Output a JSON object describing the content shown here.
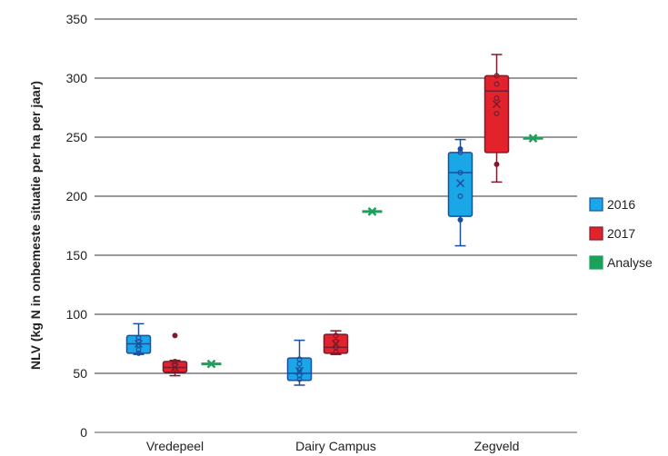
{
  "chart_data": {
    "type": "box",
    "ylabel": "NLV (kg N in onbemeste situatie per ha per jaar)",
    "xlabel": "",
    "ylim": [
      0,
      350
    ],
    "yticks": [
      0,
      50,
      100,
      150,
      200,
      250,
      300,
      350
    ],
    "grid": "horizontal",
    "legend_position": "right",
    "categories": [
      "Vredepeel",
      "Dairy Campus",
      "Zegveld"
    ],
    "series": [
      {
        "name": "2016",
        "color": "#1aa7e8",
        "stroke": "#1b4f9c",
        "boxes": [
          {
            "category": "Vredepeel",
            "min": 66,
            "q1": 67,
            "median": 75,
            "q3": 82,
            "max": 92,
            "mean": 75,
            "points": [
              67,
              70,
              74,
              77,
              80
            ]
          },
          {
            "category": "Dairy Campus",
            "min": 40,
            "q1": 44,
            "median": 50,
            "q3": 63,
            "max": 78,
            "mean": 52,
            "points": [
              45,
              48,
              53,
              58,
              62
            ]
          },
          {
            "category": "Zegveld",
            "min": 158,
            "q1": 183,
            "median": 220,
            "q3": 237,
            "max": 248,
            "mean": 211,
            "points": [
              180,
              200,
              220,
              237,
              240
            ]
          }
        ]
      },
      {
        "name": "2017",
        "color": "#e2232c",
        "stroke": "#7b1a2c",
        "boxes": [
          {
            "category": "Vredepeel",
            "min": 48,
            "q1": 51,
            "median": 55,
            "q3": 60,
            "max": 61,
            "mean": 55,
            "points": [
              82,
              60,
              57,
              54
            ]
          },
          {
            "category": "Dairy Campus",
            "min": 66,
            "q1": 67,
            "median": 72,
            "q3": 83,
            "max": 86,
            "mean": 75,
            "points": [
              68,
              72,
              77,
              82
            ]
          },
          {
            "category": "Zegveld",
            "min": 212,
            "q1": 237,
            "median": 289,
            "q3": 302,
            "max": 320,
            "mean": 278,
            "points": [
              227,
              270,
              283,
              295,
              302
            ]
          }
        ]
      },
      {
        "name": "Analyse",
        "color": "#1aa15b",
        "values": [
          {
            "category": "Vredepeel",
            "value": 58
          },
          {
            "category": "Dairy Campus",
            "value": 187
          },
          {
            "category": "Zegveld",
            "value": 249
          }
        ]
      }
    ]
  }
}
